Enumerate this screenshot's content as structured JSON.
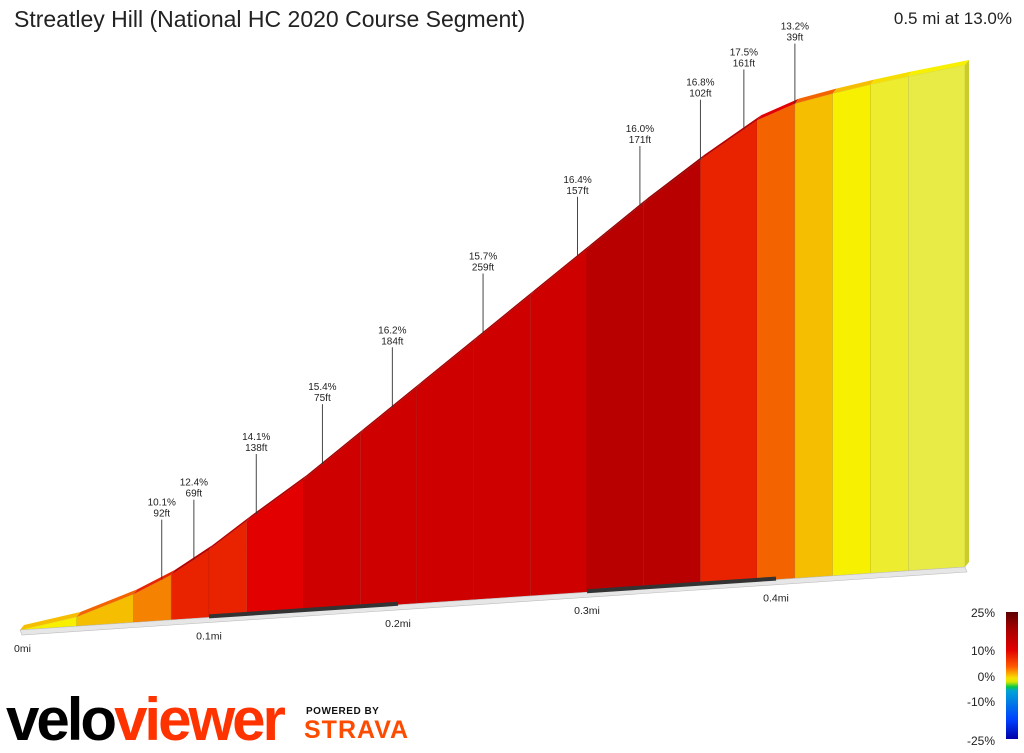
{
  "header": {
    "title": "Streatley Hill (National HC 2020 Course Segment)",
    "summary": "0.5 mi at 13.0%"
  },
  "chart_data": {
    "type": "area",
    "title": "Streatley Hill (National HC 2020 Course Segment)",
    "x_unit": "mi",
    "xlim": [
      0,
      0.5
    ],
    "x_ticks": [
      "0mi",
      "0.1mi",
      "0.2mi",
      "0.3mi",
      "0.4mi"
    ],
    "x_tick_values": [
      0,
      0.1,
      0.2,
      0.3,
      0.4
    ],
    "elevation_profile": {
      "x": [
        0.0,
        0.03,
        0.06,
        0.08,
        0.1,
        0.12,
        0.15,
        0.18,
        0.21,
        0.24,
        0.27,
        0.3,
        0.33,
        0.36,
        0.39,
        0.41,
        0.43,
        0.45,
        0.47,
        0.5
      ],
      "elevation_ft": [
        0,
        10,
        30,
        48,
        72,
        100,
        140,
        185,
        230,
        275,
        320,
        365,
        410,
        452,
        490,
        505,
        513,
        520,
        526,
        534
      ],
      "gradient_pct": [
        3,
        6,
        9,
        11,
        14,
        14,
        15,
        16,
        16,
        16,
        16,
        16,
        17,
        17,
        14,
        12,
        9,
        6,
        4,
        3
      ]
    },
    "segments": [
      {
        "gradient": "10.1%",
        "length": "92ft",
        "x": 0.075
      },
      {
        "gradient": "12.4%",
        "length": "69ft",
        "x": 0.092
      },
      {
        "gradient": "14.1%",
        "length": "138ft",
        "x": 0.125
      },
      {
        "gradient": "15.4%",
        "length": "75ft",
        "x": 0.16
      },
      {
        "gradient": "16.2%",
        "length": "184ft",
        "x": 0.197
      },
      {
        "gradient": "15.7%",
        "length": "259ft",
        "x": 0.245
      },
      {
        "gradient": "16.4%",
        "length": "157ft",
        "x": 0.295
      },
      {
        "gradient": "16.0%",
        "length": "171ft",
        "x": 0.328
      },
      {
        "gradient": "16.8%",
        "length": "102ft",
        "x": 0.36
      },
      {
        "gradient": "17.5%",
        "length": "161ft",
        "x": 0.383
      },
      {
        "gradient": "13.2%",
        "length": "39ft",
        "x": 0.41
      }
    ]
  },
  "scale": {
    "labels": [
      "25%",
      "10%",
      "0%",
      "-10%",
      "-25%"
    ],
    "colors": [
      "#5c0000",
      "#e20000",
      "#ff5a00",
      "#f7e100",
      "#00c84b",
      "#00a3d6",
      "#0000a8"
    ]
  },
  "branding": {
    "logo_part1": "velo",
    "logo_part2": "viewer",
    "powered_by": "POWERED BY",
    "partner": "STRAVA"
  }
}
